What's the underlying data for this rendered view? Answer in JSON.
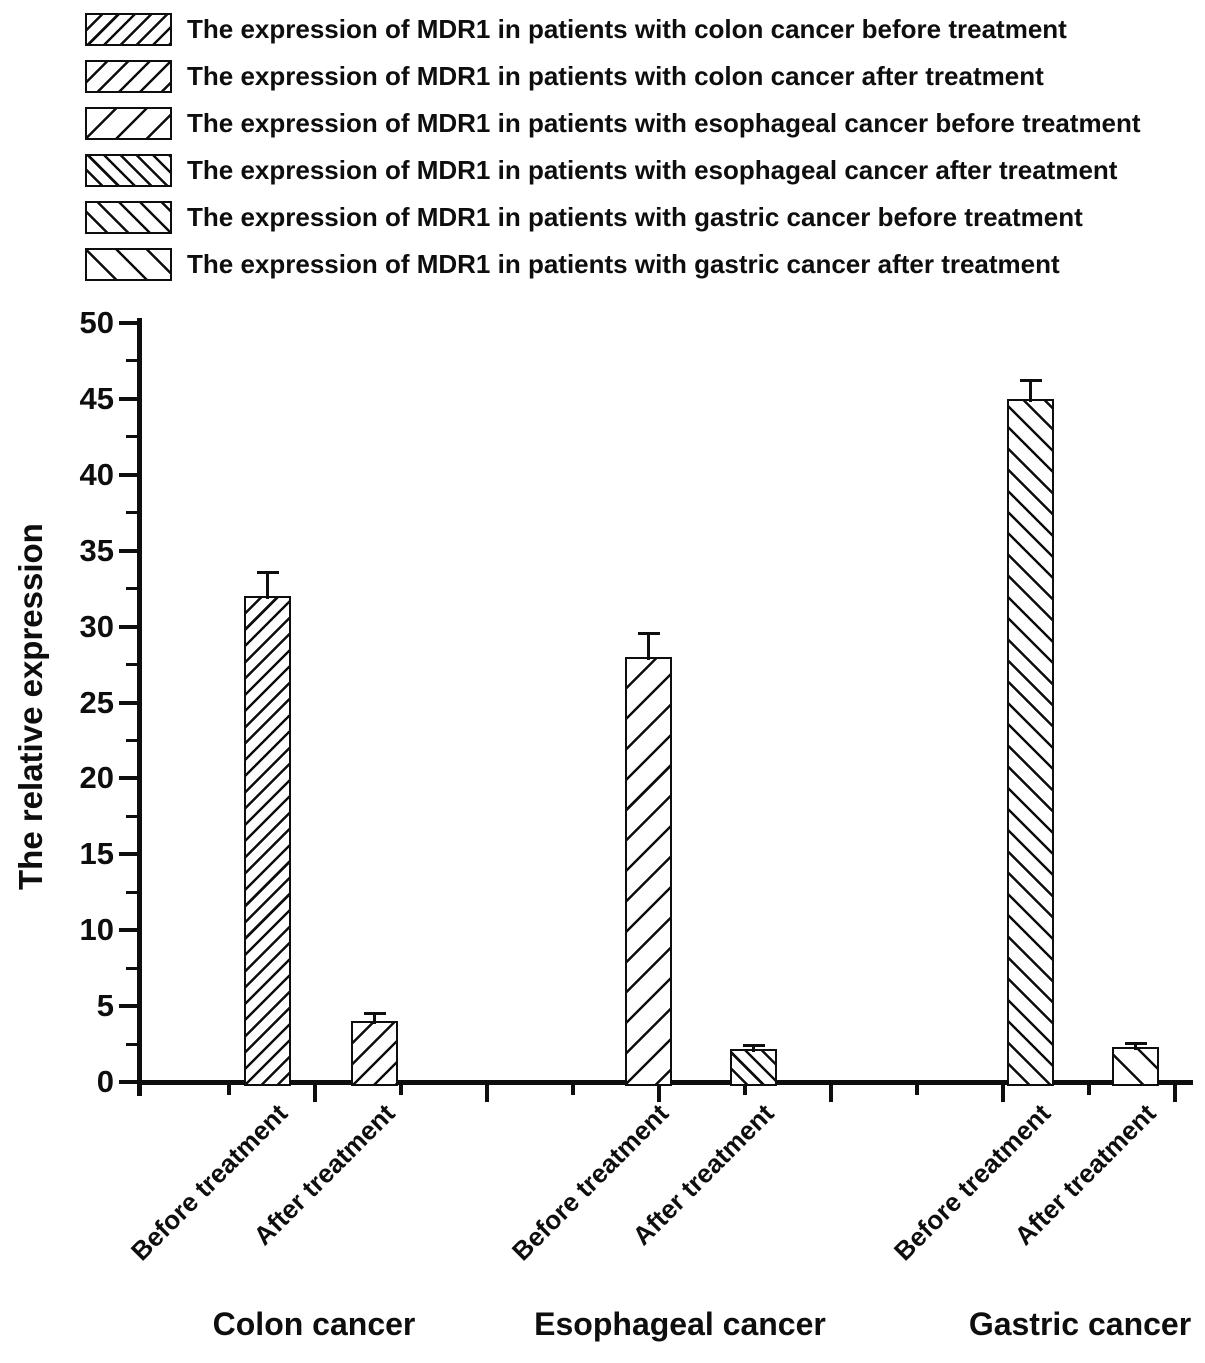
{
  "colors": {
    "ink": "#0e0e0e",
    "background": "#ffffff"
  },
  "legend": {
    "items": [
      {
        "hatch": "/",
        "density": "dense",
        "label": "The expression of MDR1 in patients with colon cancer before treatment"
      },
      {
        "hatch": "/",
        "density": "medium",
        "label": "The expression of MDR1 in patients with colon cancer after treatment"
      },
      {
        "hatch": "/",
        "density": "sparse",
        "label": "The expression of MDR1 in patients with esophageal cancer before treatment"
      },
      {
        "hatch": "\\",
        "density": "dense",
        "label": "The expression of MDR1 in patients with esophageal cancer after treatment"
      },
      {
        "hatch": "\\",
        "density": "medium",
        "label": "The expression of MDR1 in patients with gastric cancer before treatment"
      },
      {
        "hatch": "\\",
        "density": "sparse",
        "label": "The expression of MDR1 in patients with gastric cancer after treatment"
      }
    ]
  },
  "chart_data": {
    "type": "bar",
    "title": "",
    "xlabel": "",
    "ylabel": "The relative expression",
    "ylim": [
      0,
      50
    ],
    "y_major_tick_step": 5,
    "y_minor_tick_step": 2.5,
    "y_tick_labels": [
      "0",
      "5",
      "10",
      "15",
      "20",
      "25",
      "30",
      "35",
      "40",
      "45",
      "50"
    ],
    "grid": false,
    "legend_position": "top-left",
    "error_bars": "upper whisker with cap",
    "groups": [
      {
        "label": "Colon cancer",
        "bars": [
          {
            "label": "Before treatment",
            "value": 32,
            "error": 1.5,
            "hatch": "/",
            "density": "dense"
          },
          {
            "label": "After treatment",
            "value": 4,
            "error": 0.5,
            "hatch": "/",
            "density": "medium"
          }
        ]
      },
      {
        "label": "Esophageal cancer",
        "bars": [
          {
            "label": "Before treatment",
            "value": 28,
            "error": 1.5,
            "hatch": "/",
            "density": "sparse"
          },
          {
            "label": "After treatment",
            "value": 2.2,
            "error": 0.2,
            "hatch": "\\",
            "density": "dense"
          }
        ]
      },
      {
        "label": "Gastric cancer",
        "bars": [
          {
            "label": "Before treatment",
            "value": 45,
            "error": 1.2,
            "hatch": "\\",
            "density": "medium"
          },
          {
            "label": "After treatment",
            "value": 2.3,
            "error": 0.2,
            "hatch": "\\",
            "density": "sparse"
          }
        ]
      }
    ]
  }
}
